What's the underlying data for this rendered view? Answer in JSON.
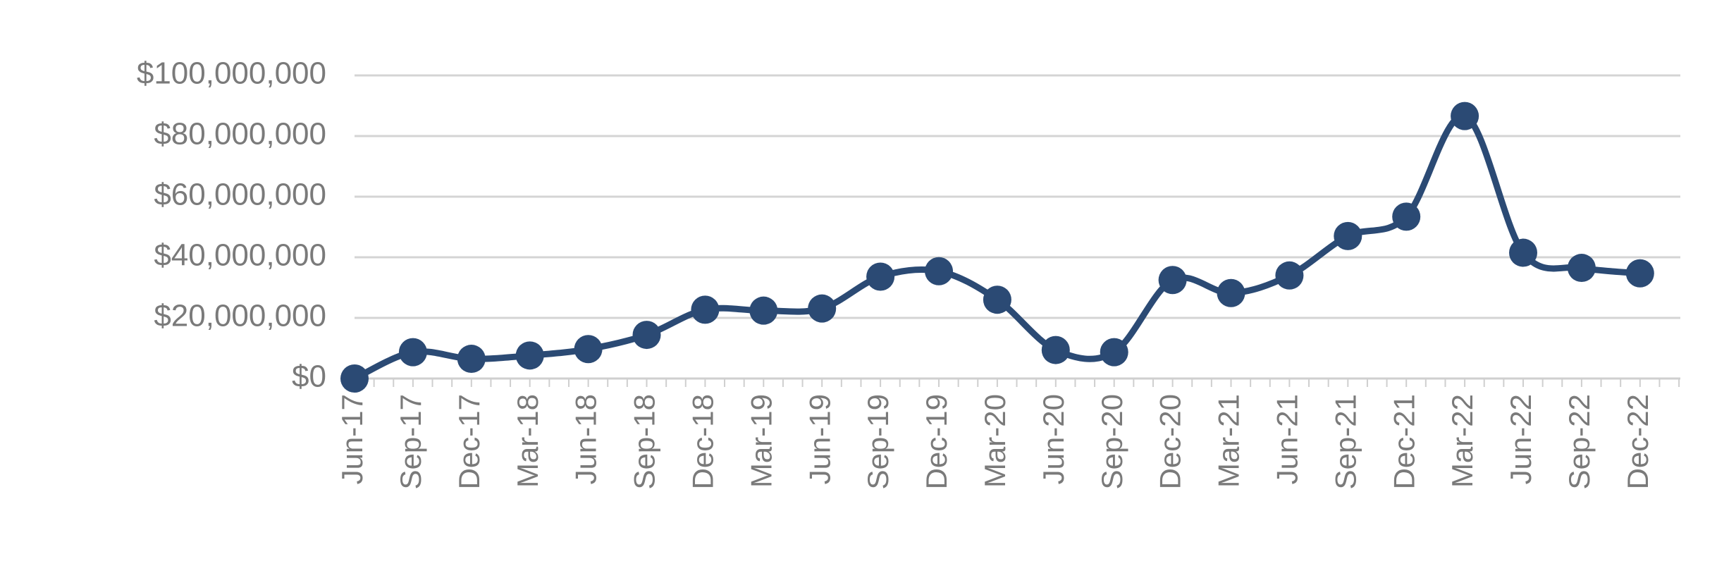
{
  "chart_data": {
    "type": "line",
    "categories": [
      "Jun-17",
      "Sep-17",
      "Dec-17",
      "Mar-18",
      "Jun-18",
      "Sep-18",
      "Dec-18",
      "Mar-19",
      "Jun-19",
      "Sep-19",
      "Dec-19",
      "Mar-20",
      "Jun-20",
      "Sep-20",
      "Dec-20",
      "Mar-21",
      "Jun-21",
      "Sep-21",
      "Dec-21",
      "Mar-22",
      "Jun-22",
      "Sep-22",
      "Dec-22"
    ],
    "series": [
      {
        "color": "#2b4a74",
        "values": [
          0,
          8700000,
          6500000,
          7600000,
          9700000,
          14400000,
          22700000,
          22400000,
          23100000,
          33600000,
          35400000,
          26000000,
          9400000,
          8700000,
          32500000,
          28200000,
          34000000,
          47000000,
          53400000,
          86600000,
          41500000,
          36500000,
          34700000
        ]
      }
    ],
    "ylim": [
      0,
      100000000
    ],
    "yticks": [
      {
        "value": 0,
        "label": "$0"
      },
      {
        "value": 20000000,
        "label": "$20,000,000"
      },
      {
        "value": 40000000,
        "label": "$40,000,000"
      },
      {
        "value": 60000000,
        "label": "$60,000,000"
      },
      {
        "value": 80000000,
        "label": "$80,000,000"
      },
      {
        "value": 100000000,
        "label": "$100,000,000"
      }
    ],
    "grid": true
  }
}
